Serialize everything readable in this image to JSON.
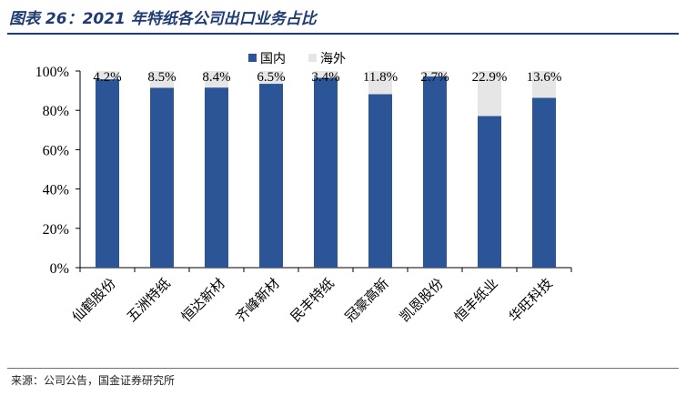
{
  "title": "图表 26：2021 年特纸各公司出口业务占比",
  "source": "来源：公司公告，国金证券研究所",
  "colors": {
    "domestic": "#2b5597",
    "overseas": "#e6e6e6",
    "title": "#1f3b73"
  },
  "chart_data": {
    "type": "bar",
    "stacked": true,
    "categories": [
      "仙鹤股份",
      "五洲特纸",
      "恒达新材",
      "齐峰新材",
      "民丰特纸",
      "冠豪高新",
      "凯恩股份",
      "恒丰纸业",
      "华旺科技"
    ],
    "series": [
      {
        "name": "国内",
        "values": [
          95.8,
          91.5,
          91.6,
          93.5,
          96.6,
          88.2,
          97.3,
          77.1,
          86.4
        ]
      },
      {
        "name": "海外",
        "values": [
          4.2,
          8.5,
          8.4,
          6.5,
          3.4,
          11.8,
          2.7,
          22.9,
          13.6
        ]
      }
    ],
    "data_labels": [
      "4.2%",
      "8.5%",
      "8.4%",
      "6.5%",
      "3.4%",
      "11.8%",
      "2.7%",
      "22.9%",
      "13.6%"
    ],
    "yticks": [
      "0%",
      "20%",
      "40%",
      "60%",
      "80%",
      "100%"
    ],
    "ylim": [
      0,
      100
    ],
    "legend_position": "top-center",
    "grid": false
  }
}
